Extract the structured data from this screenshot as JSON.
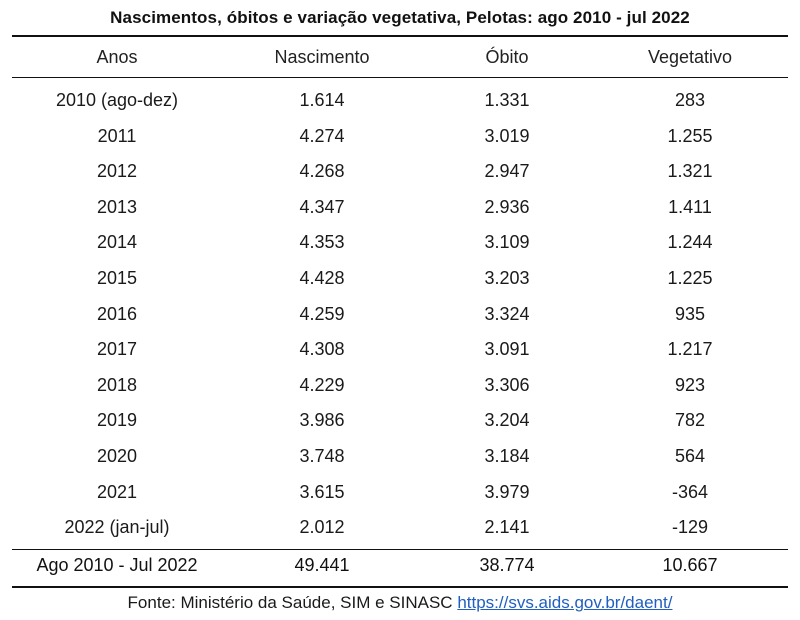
{
  "table": {
    "title": "Nascimentos, óbitos e variação vegetativa, Pelotas: ago 2010 - jul 2022",
    "columns": [
      "Anos",
      "Nascimento",
      "Óbito",
      "Vegetativo"
    ],
    "rows": [
      [
        "2010 (ago-dez)",
        "1.614",
        "1.331",
        "283"
      ],
      [
        "2011",
        "4.274",
        "3.019",
        "1.255"
      ],
      [
        "2012",
        "4.268",
        "2.947",
        "1.321"
      ],
      [
        "2013",
        "4.347",
        "2.936",
        "1.411"
      ],
      [
        "2014",
        "4.353",
        "3.109",
        "1.244"
      ],
      [
        "2015",
        "4.428",
        "3.203",
        "1.225"
      ],
      [
        "2016",
        "4.259",
        "3.324",
        "935"
      ],
      [
        "2017",
        "4.308",
        "3.091",
        "1.217"
      ],
      [
        "2018",
        "4.229",
        "3.306",
        "923"
      ],
      [
        "2019",
        "3.986",
        "3.204",
        "782"
      ],
      [
        "2020",
        "3.748",
        "3.184",
        "564"
      ],
      [
        "2021",
        "3.615",
        "3.979",
        "-364"
      ],
      [
        "2022 (jan-jul)",
        "2.012",
        "2.141",
        "-129"
      ]
    ],
    "total": [
      "Ago 2010 - Jul 2022",
      "49.441",
      "38.774",
      "10.667"
    ]
  },
  "source": {
    "prefix": "Fonte: Ministério da Saúde, SIM e SINASC ",
    "link_text": "https://svs.aids.gov.br/daent/",
    "link_color": "#1f5fbf"
  }
}
